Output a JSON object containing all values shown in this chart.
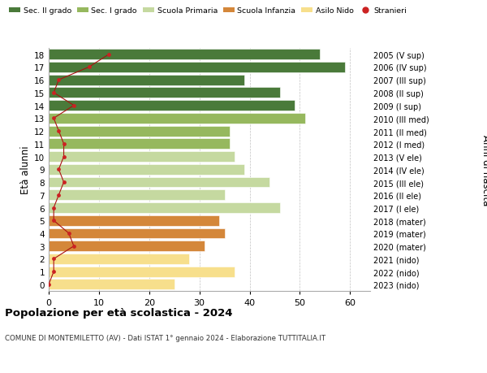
{
  "ages": [
    0,
    1,
    2,
    3,
    4,
    5,
    6,
    7,
    8,
    9,
    10,
    11,
    12,
    13,
    14,
    15,
    16,
    17,
    18
  ],
  "bar_values": [
    25,
    37,
    28,
    31,
    35,
    34,
    46,
    35,
    44,
    39,
    37,
    36,
    36,
    51,
    49,
    46,
    39,
    59,
    54
  ],
  "stranieri": [
    0,
    1,
    1,
    5,
    4,
    1,
    1,
    2,
    3,
    2,
    3,
    3,
    2,
    1,
    5,
    1,
    2,
    8,
    12
  ],
  "right_labels": [
    "2023 (nido)",
    "2022 (nido)",
    "2021 (nido)",
    "2020 (mater)",
    "2019 (mater)",
    "2018 (mater)",
    "2017 (I ele)",
    "2016 (II ele)",
    "2015 (III ele)",
    "2014 (IV ele)",
    "2013 (V ele)",
    "2012 (I med)",
    "2011 (II med)",
    "2010 (III med)",
    "2009 (I sup)",
    "2008 (II sup)",
    "2007 (III sup)",
    "2006 (IV sup)",
    "2005 (V sup)"
  ],
  "bar_colors": [
    "#f7df8c",
    "#f7df8c",
    "#f7df8c",
    "#d4873a",
    "#d4873a",
    "#d4873a",
    "#c5d9a0",
    "#c5d9a0",
    "#c5d9a0",
    "#c5d9a0",
    "#c5d9a0",
    "#96b85e",
    "#96b85e",
    "#96b85e",
    "#4a7a3a",
    "#4a7a3a",
    "#4a7a3a",
    "#4a7a3a",
    "#4a7a3a"
  ],
  "legend_labels": [
    "Sec. II grado",
    "Sec. I grado",
    "Scuola Primaria",
    "Scuola Infanzia",
    "Asilo Nido",
    "Stranieri"
  ],
  "legend_colors": [
    "#4a7a3a",
    "#96b85e",
    "#c5d9a0",
    "#d4873a",
    "#f7df8c",
    "#cc2222"
  ],
  "title_main": "Popolazione per età scolastica - 2024",
  "title_sub": "COMUNE DI MONTEMILETTO (AV) - Dati ISTAT 1° gennaio 2024 - Elaborazione TUTTITALIA.IT",
  "ylabel_left": "Età alunni",
  "ylabel_right": "Anni di nascita",
  "xlim": [
    0,
    64
  ],
  "background_color": "#ffffff",
  "grid_color": "#bbbbbb",
  "stranieri_color": "#cc2222",
  "stranieri_line_color": "#aa1111"
}
